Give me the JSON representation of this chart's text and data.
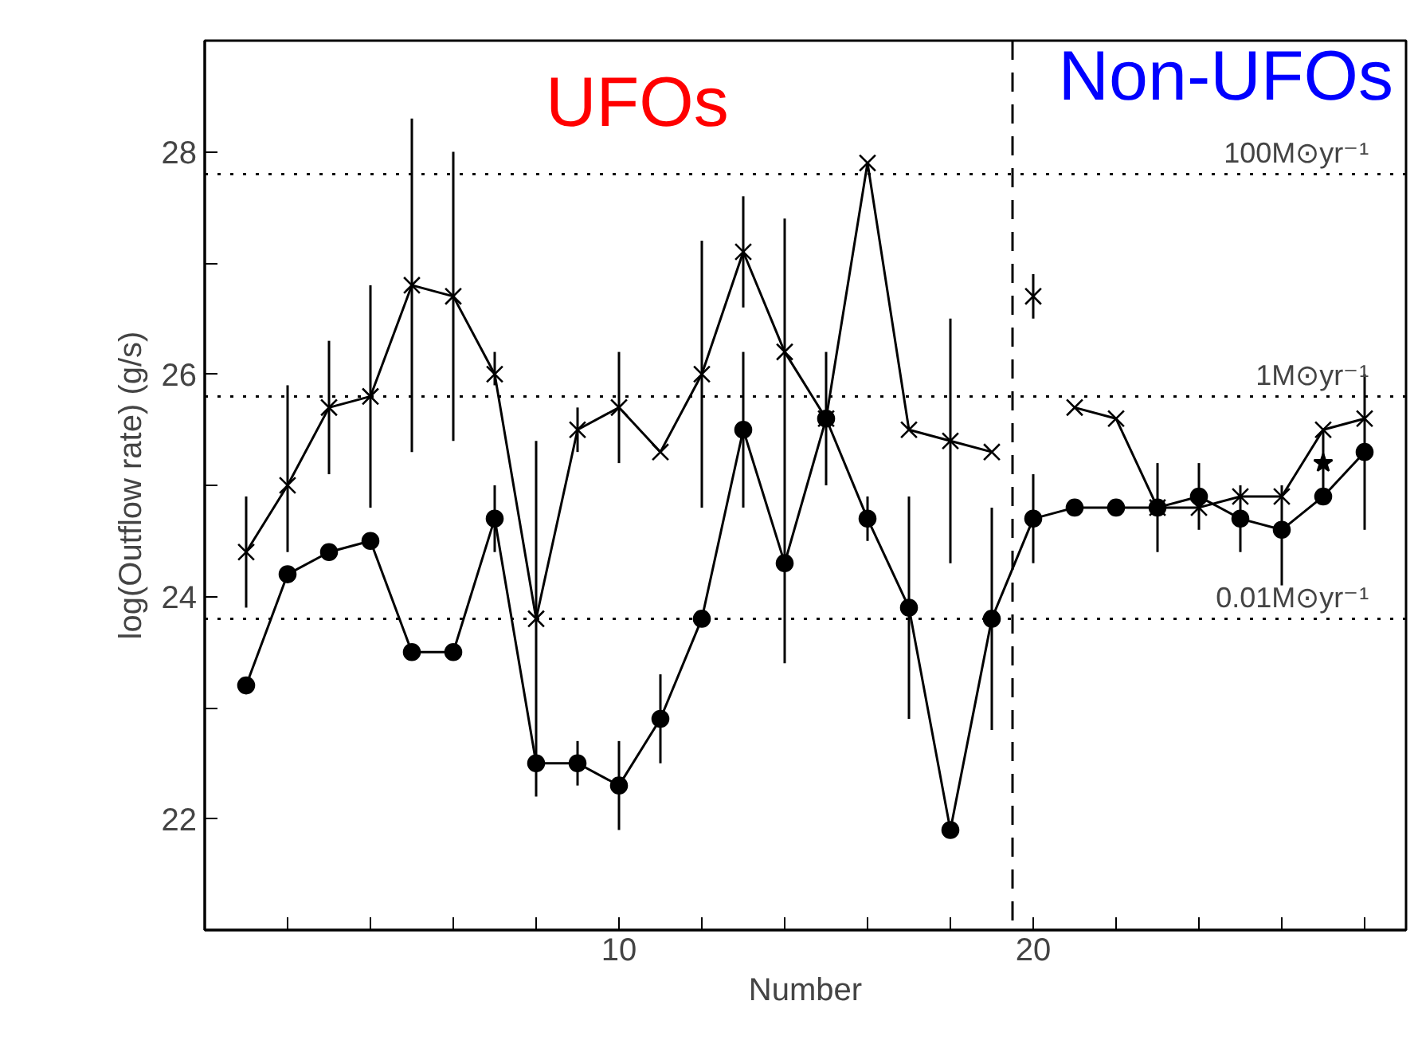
{
  "chart_data": {
    "type": "line",
    "xlabel": "Number",
    "ylabel": "log(Outflow rate) (g/s)",
    "x": [
      1,
      2,
      3,
      4,
      5,
      6,
      7,
      8,
      9,
      10,
      11,
      12,
      13,
      14,
      15,
      16,
      17,
      18,
      19,
      20,
      21,
      22,
      23,
      24,
      25,
      26,
      27,
      28
    ],
    "xlim": [
      0,
      29
    ],
    "ylim": [
      21,
      29
    ],
    "xticks": [
      {
        "value": 2,
        "label": null
      },
      {
        "value": 4,
        "label": null
      },
      {
        "value": 6,
        "label": null
      },
      {
        "value": 8,
        "label": null
      },
      10,
      {
        "value": 12,
        "label": null
      },
      {
        "value": 14,
        "label": null
      },
      {
        "value": 16,
        "label": null
      },
      {
        "value": 18,
        "label": null
      },
      20,
      {
        "value": 22,
        "label": null
      },
      {
        "value": 24,
        "label": null
      },
      {
        "value": 26,
        "label": null
      },
      {
        "value": 28,
        "label": null
      }
    ],
    "yticks": [
      {
        "value": 21,
        "label": null
      },
      22,
      {
        "value": 23,
        "label": null
      },
      24,
      {
        "value": 25,
        "label": null
      },
      26,
      {
        "value": 27,
        "label": null
      },
      28
    ],
    "grid": false,
    "series": [
      {
        "color": "#000000",
        "marker": "cross",
        "values": [
          24.4,
          25.0,
          25.7,
          25.8,
          26.8,
          26.7,
          26.0,
          23.8,
          25.5,
          25.7,
          25.3,
          26.0,
          27.1,
          26.2,
          25.6,
          27.9,
          25.5,
          25.4,
          25.3,
          null,
          25.7,
          25.6,
          24.8,
          24.8,
          24.9,
          24.9,
          25.5,
          25.6
        ],
        "errors": [
          [
            23.9,
            24.9
          ],
          [
            24.4,
            25.9
          ],
          [
            25.1,
            26.3
          ],
          [
            24.8,
            26.8
          ],
          [
            25.3,
            28.3
          ],
          [
            25.4,
            28.0
          ],
          [
            25.9,
            26.2
          ],
          [
            22.2,
            25.4
          ],
          [
            25.3,
            25.7
          ],
          [
            25.2,
            26.2
          ],
          null,
          [
            24.8,
            27.2
          ],
          [
            26.6,
            27.6
          ],
          [
            23.4,
            27.4
          ],
          [
            25.0,
            26.2
          ],
          null,
          null,
          [
            24.3,
            26.5
          ],
          null,
          null,
          null,
          null,
          null,
          null,
          null,
          null,
          null,
          null
        ]
      },
      {
        "color": "#000000",
        "marker": "cross",
        "x": [
          20
        ],
        "values": [
          26.7
        ],
        "errors": [
          [
            26.5,
            26.9
          ]
        ]
      },
      {
        "color": "#000000",
        "marker": "circle",
        "values": [
          23.2,
          24.2,
          24.4,
          24.5,
          23.5,
          23.5,
          24.7,
          22.5,
          22.5,
          22.3,
          22.9,
          23.8,
          25.5,
          24.3,
          25.6,
          24.7,
          23.9,
          21.9,
          23.8,
          24.7,
          24.8,
          24.8,
          24.8,
          24.9,
          24.7,
          24.6,
          24.9,
          25.3
        ],
        "errors": [
          null,
          null,
          null,
          null,
          null,
          null,
          [
            24.4,
            25.0
          ],
          null,
          [
            22.3,
            22.7
          ],
          [
            21.9,
            22.7
          ],
          [
            22.5,
            23.3
          ],
          null,
          [
            24.8,
            26.2
          ],
          null,
          null,
          [
            24.5,
            24.9
          ],
          [
            22.9,
            24.9
          ],
          null,
          [
            22.8,
            24.8
          ],
          [
            24.3,
            25.1
          ],
          null,
          null,
          [
            24.4,
            25.2
          ],
          [
            24.6,
            25.2
          ],
          [
            24.4,
            25.0
          ],
          [
            24.1,
            25.0
          ],
          [
            24.9,
            25.5
          ],
          [
            24.6,
            26.0
          ]
        ]
      },
      {
        "color": "#000000",
        "marker": "star",
        "x": [
          27
        ],
        "values": [
          25.2
        ]
      }
    ],
    "ref_lines": [
      {
        "axis": "y",
        "value": 27.8,
        "label": "100M⊙yr⁻¹",
        "line_style": "dotted"
      },
      {
        "axis": "y",
        "value": 25.8,
        "label": "1M⊙yr⁻¹",
        "line_style": "dotted"
      },
      {
        "axis": "y",
        "value": 23.8,
        "label": "0.01M⊙yr⁻¹",
        "line_style": "dotted"
      },
      {
        "axis": "x",
        "value": 19.5,
        "label": null,
        "line_style": "dashed"
      }
    ],
    "annotations": [
      "UFOs",
      "Non-UFOs"
    ]
  }
}
